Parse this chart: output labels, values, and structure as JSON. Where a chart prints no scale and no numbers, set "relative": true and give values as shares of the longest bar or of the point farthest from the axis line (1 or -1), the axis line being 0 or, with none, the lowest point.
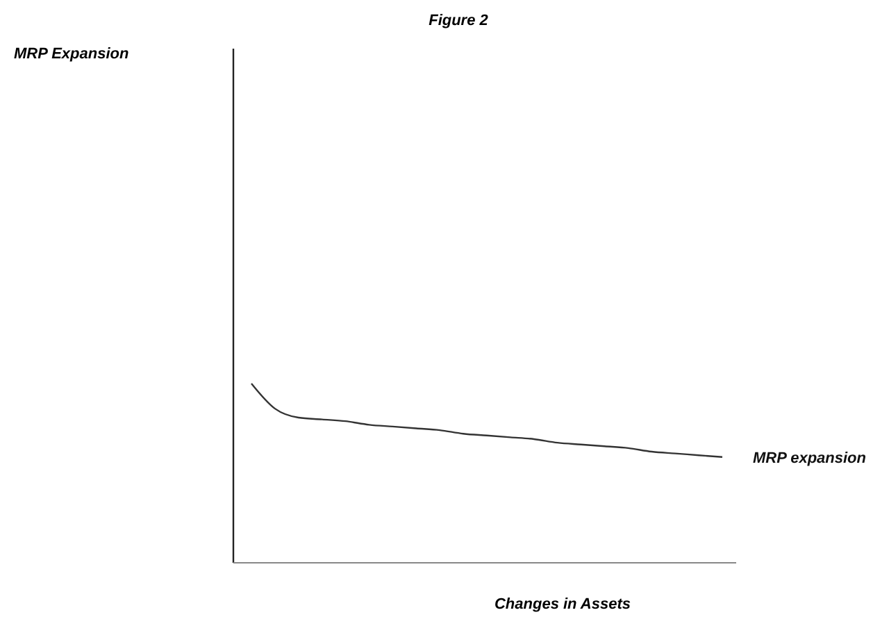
{
  "chart_data": {
    "type": "line",
    "title": "Figure 2",
    "xlabel": "Changes in Assets",
    "annotations": [
      "MRP Expansion"
    ],
    "relative": true,
    "categories": [
      null,
      null,
      null,
      null,
      null,
      null,
      null,
      null,
      null,
      null,
      null,
      null,
      null,
      null,
      null,
      null,
      null,
      null,
      null,
      null,
      null
    ],
    "series": [
      {
        "name": "MRP expansion",
        "color": "#333333",
        "values": [
          1.0,
          0.86,
          0.81,
          0.8,
          0.79,
          0.77,
          0.76,
          0.75,
          0.74,
          0.72,
          0.71,
          0.7,
          0.69,
          0.67,
          0.66,
          0.65,
          0.64,
          0.62,
          0.61,
          0.6,
          0.59
        ]
      }
    ]
  }
}
